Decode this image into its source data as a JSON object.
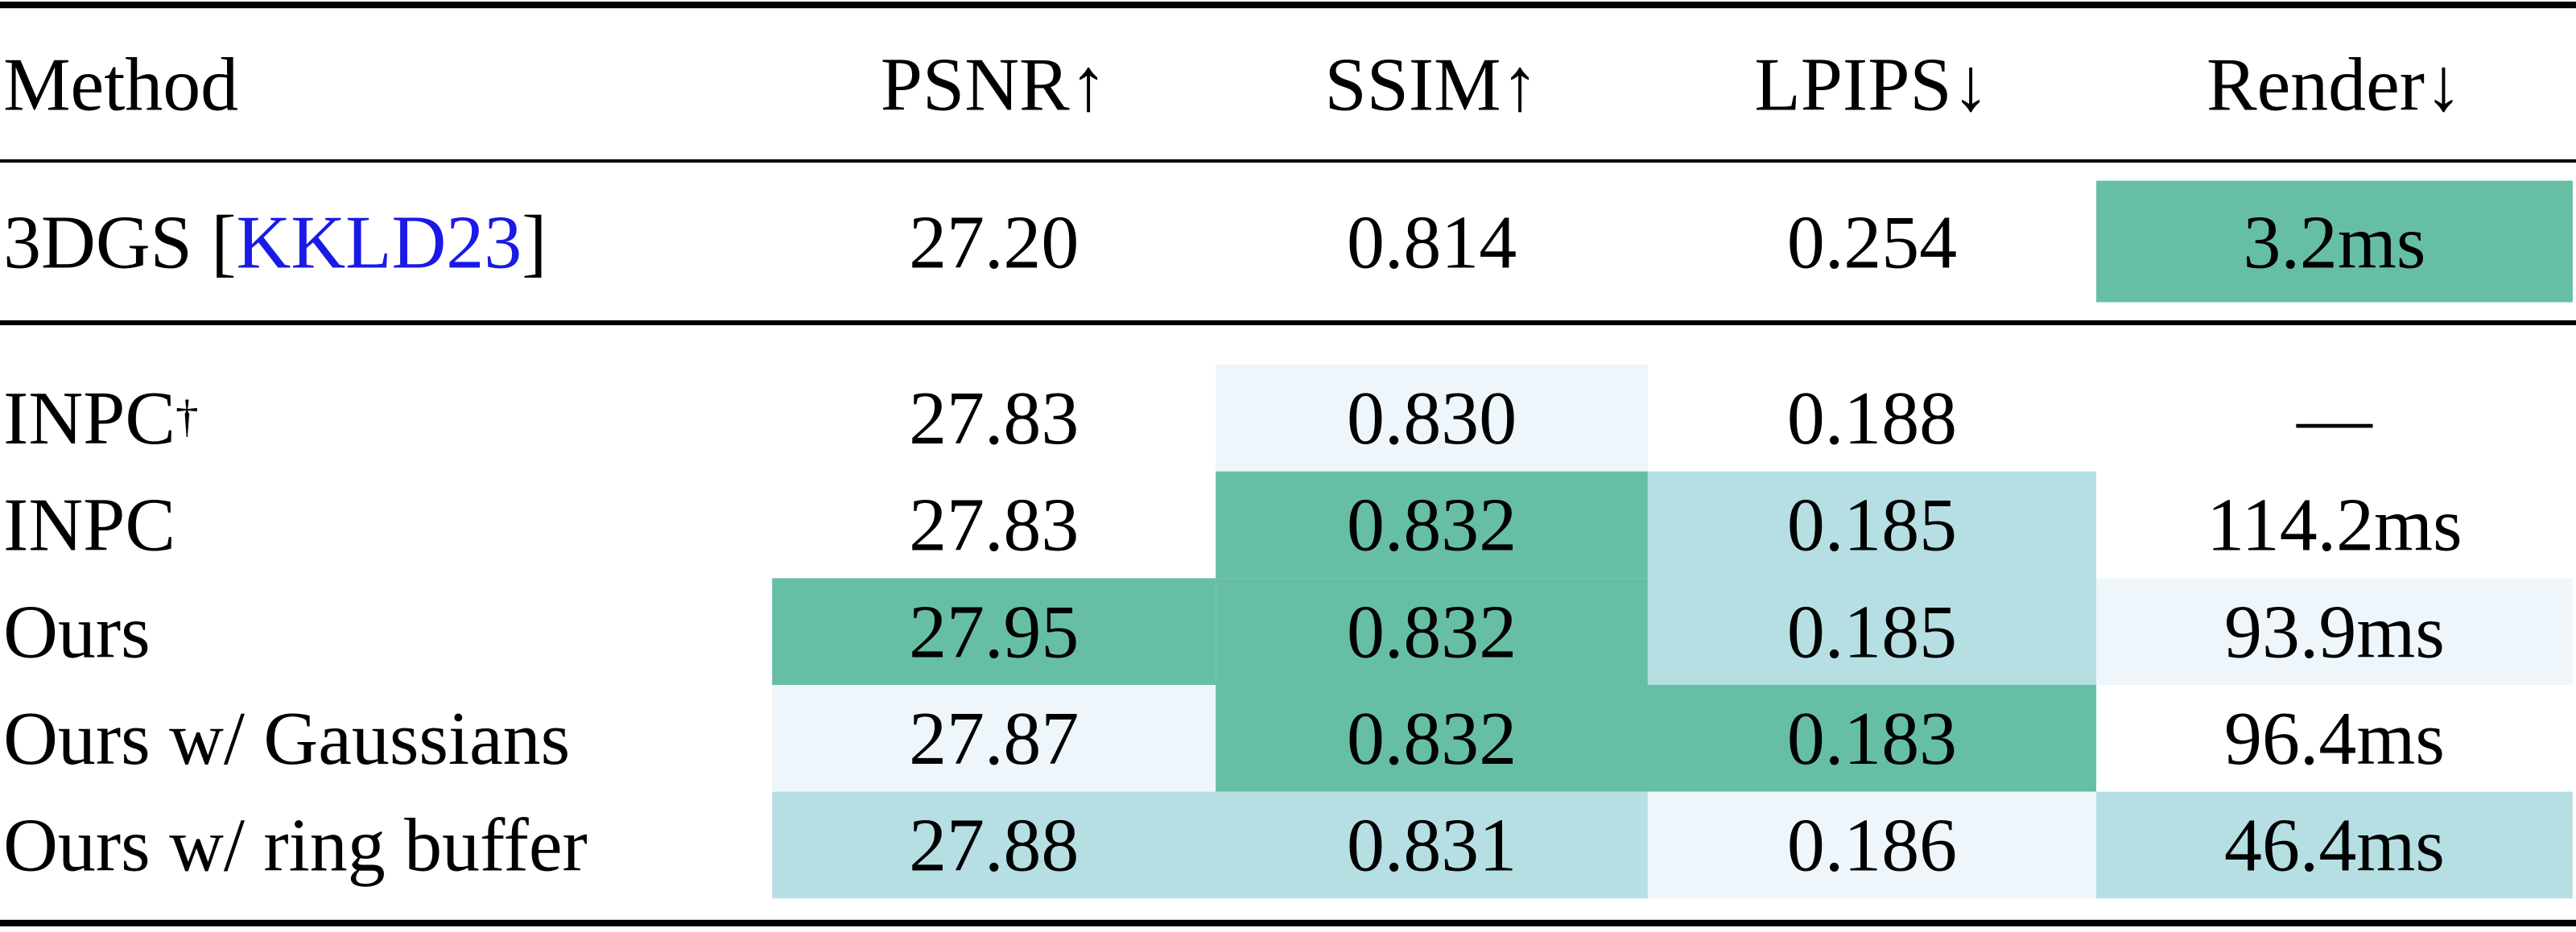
{
  "table": {
    "header": [
      "Method",
      "PSNR↑",
      "SSIM↑",
      "LPIPS↓",
      "Render↓"
    ],
    "groups": [
      [
        {
          "method": [
            {
              "text": "3DGS ["
            },
            {
              "text": "KKLD23",
              "style": "cite"
            },
            {
              "text": "]"
            }
          ],
          "cells": [
            {
              "text": "27.20",
              "color": null
            },
            {
              "text": "0.814",
              "color": null
            },
            {
              "text": "0.254",
              "color": null
            },
            {
              "text": "3.2ms",
              "color": "#66bfa5"
            }
          ]
        }
      ],
      [
        {
          "method": [
            {
              "text": "INPC"
            },
            {
              "text": "†",
              "style": "sup"
            }
          ],
          "cells": [
            {
              "text": "27.83",
              "color": null
            },
            {
              "text": "0.830",
              "color": "#eef6fc"
            },
            {
              "text": "0.188",
              "color": null
            },
            {
              "text": "—",
              "color": null
            }
          ]
        },
        {
          "method": [
            {
              "text": "INPC"
            }
          ],
          "cells": [
            {
              "text": "27.83",
              "color": null
            },
            {
              "text": "0.832",
              "color": "#66bfa5"
            },
            {
              "text": "0.185",
              "color": "#b5dfe3"
            },
            {
              "text": "114.2ms",
              "color": null
            }
          ]
        },
        {
          "method": [
            {
              "text": "Ours"
            }
          ],
          "cells": [
            {
              "text": "27.95",
              "color": "#66bfa5"
            },
            {
              "text": "0.832",
              "color": "#66bfa5"
            },
            {
              "text": "0.185",
              "color": "#b5dfe3"
            },
            {
              "text": "93.9ms",
              "color": "#eef6fc"
            }
          ]
        },
        {
          "method": [
            {
              "text": "Ours w/ Gaussians"
            }
          ],
          "cells": [
            {
              "text": "27.87",
              "color": "#eef6fc"
            },
            {
              "text": "0.832",
              "color": "#66bfa5"
            },
            {
              "text": "0.183",
              "color": "#66bfa5"
            },
            {
              "text": "96.4ms",
              "color": null
            }
          ]
        },
        {
          "method": [
            {
              "text": "Ours w/ ring buffer"
            }
          ],
          "cells": [
            {
              "text": "27.88",
              "color": "#b5dfe3"
            },
            {
              "text": "0.831",
              "color": "#b5dfe3"
            },
            {
              "text": "0.186",
              "color": "#eef6fc"
            },
            {
              "text": "46.4ms",
              "color": "#b5dfe3"
            }
          ]
        }
      ]
    ]
  }
}
